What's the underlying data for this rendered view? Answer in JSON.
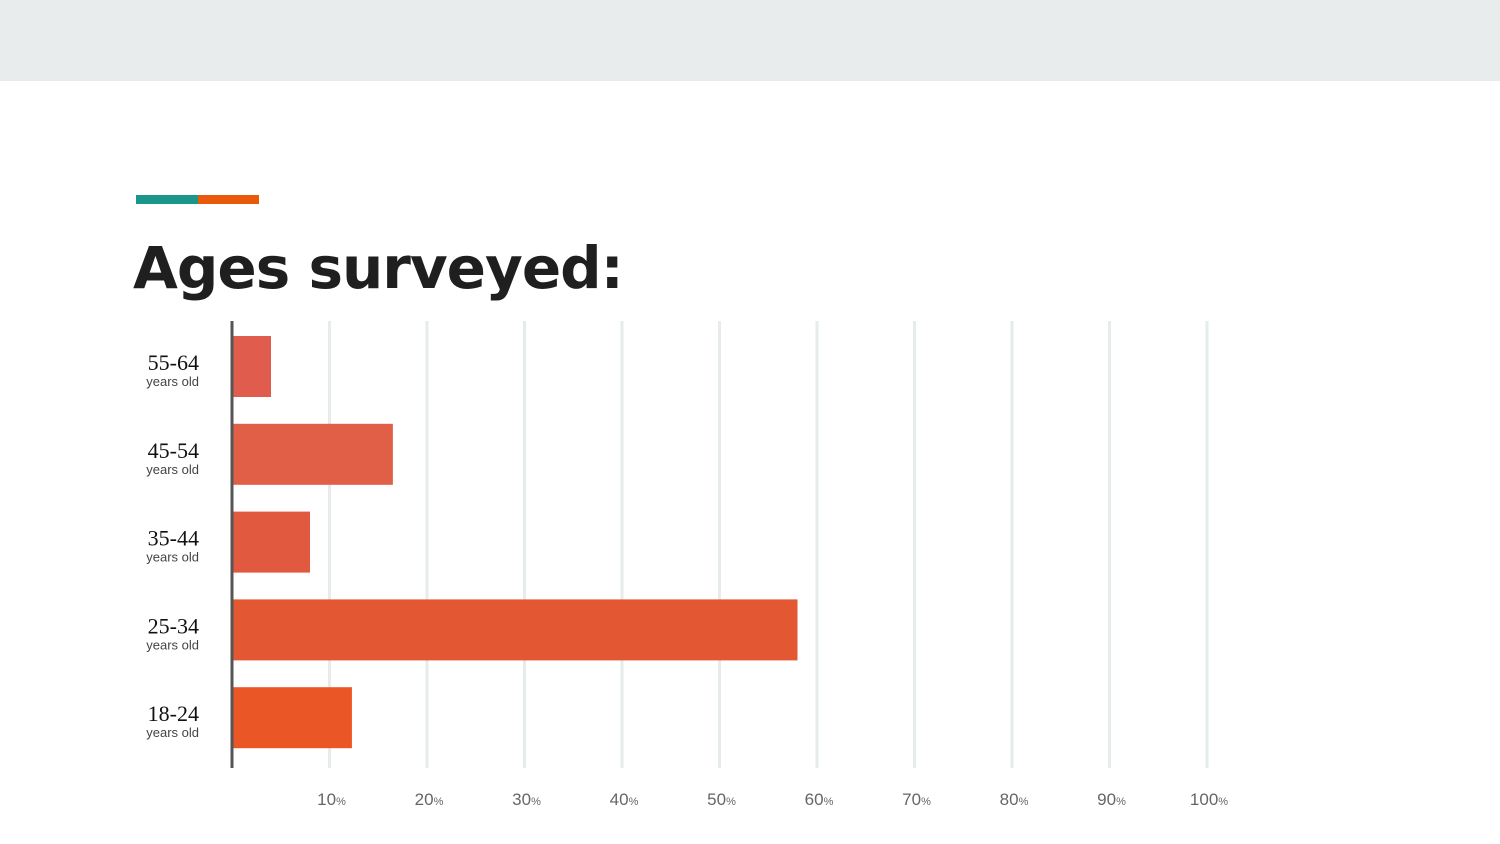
{
  "slide": {
    "title": "Ages surveyed:",
    "accent_colors": [
      "#1b968b",
      "#e8590c"
    ],
    "background_band_color": "#e8eced"
  },
  "chart_data": {
    "type": "bar",
    "orientation": "horizontal",
    "title": "",
    "categories": [
      {
        "label": "55-64",
        "sublabel": "years old",
        "value": 4,
        "color": "#e05c4c"
      },
      {
        "label": "45-54",
        "sublabel": "years old",
        "value": 16.5,
        "color": "#e15e47"
      },
      {
        "label": "35-44",
        "sublabel": "years old",
        "value": 8,
        "color": "#e15a3f"
      },
      {
        "label": "25-34",
        "sublabel": "years old",
        "value": 58,
        "color": "#e35833"
      },
      {
        "label": "18-24",
        "sublabel": "years old",
        "value": 12.3,
        "color": "#eb5626"
      }
    ],
    "x_ticks": [
      {
        "num": "10",
        "unit": "%"
      },
      {
        "num": "20",
        "unit": "%"
      },
      {
        "num": "30",
        "unit": "%"
      },
      {
        "num": "40",
        "unit": "%"
      },
      {
        "num": "50",
        "unit": "%"
      },
      {
        "num": "60",
        "unit": "%"
      },
      {
        "num": "70",
        "unit": "%"
      },
      {
        "num": "80",
        "unit": "%"
      },
      {
        "num": "90",
        "unit": "%"
      },
      {
        "num": "100",
        "unit": "%"
      }
    ],
    "xlim": [
      0,
      100
    ],
    "grid": true,
    "grid_color": "#e6ebeb",
    "axis_color": "#555555"
  }
}
